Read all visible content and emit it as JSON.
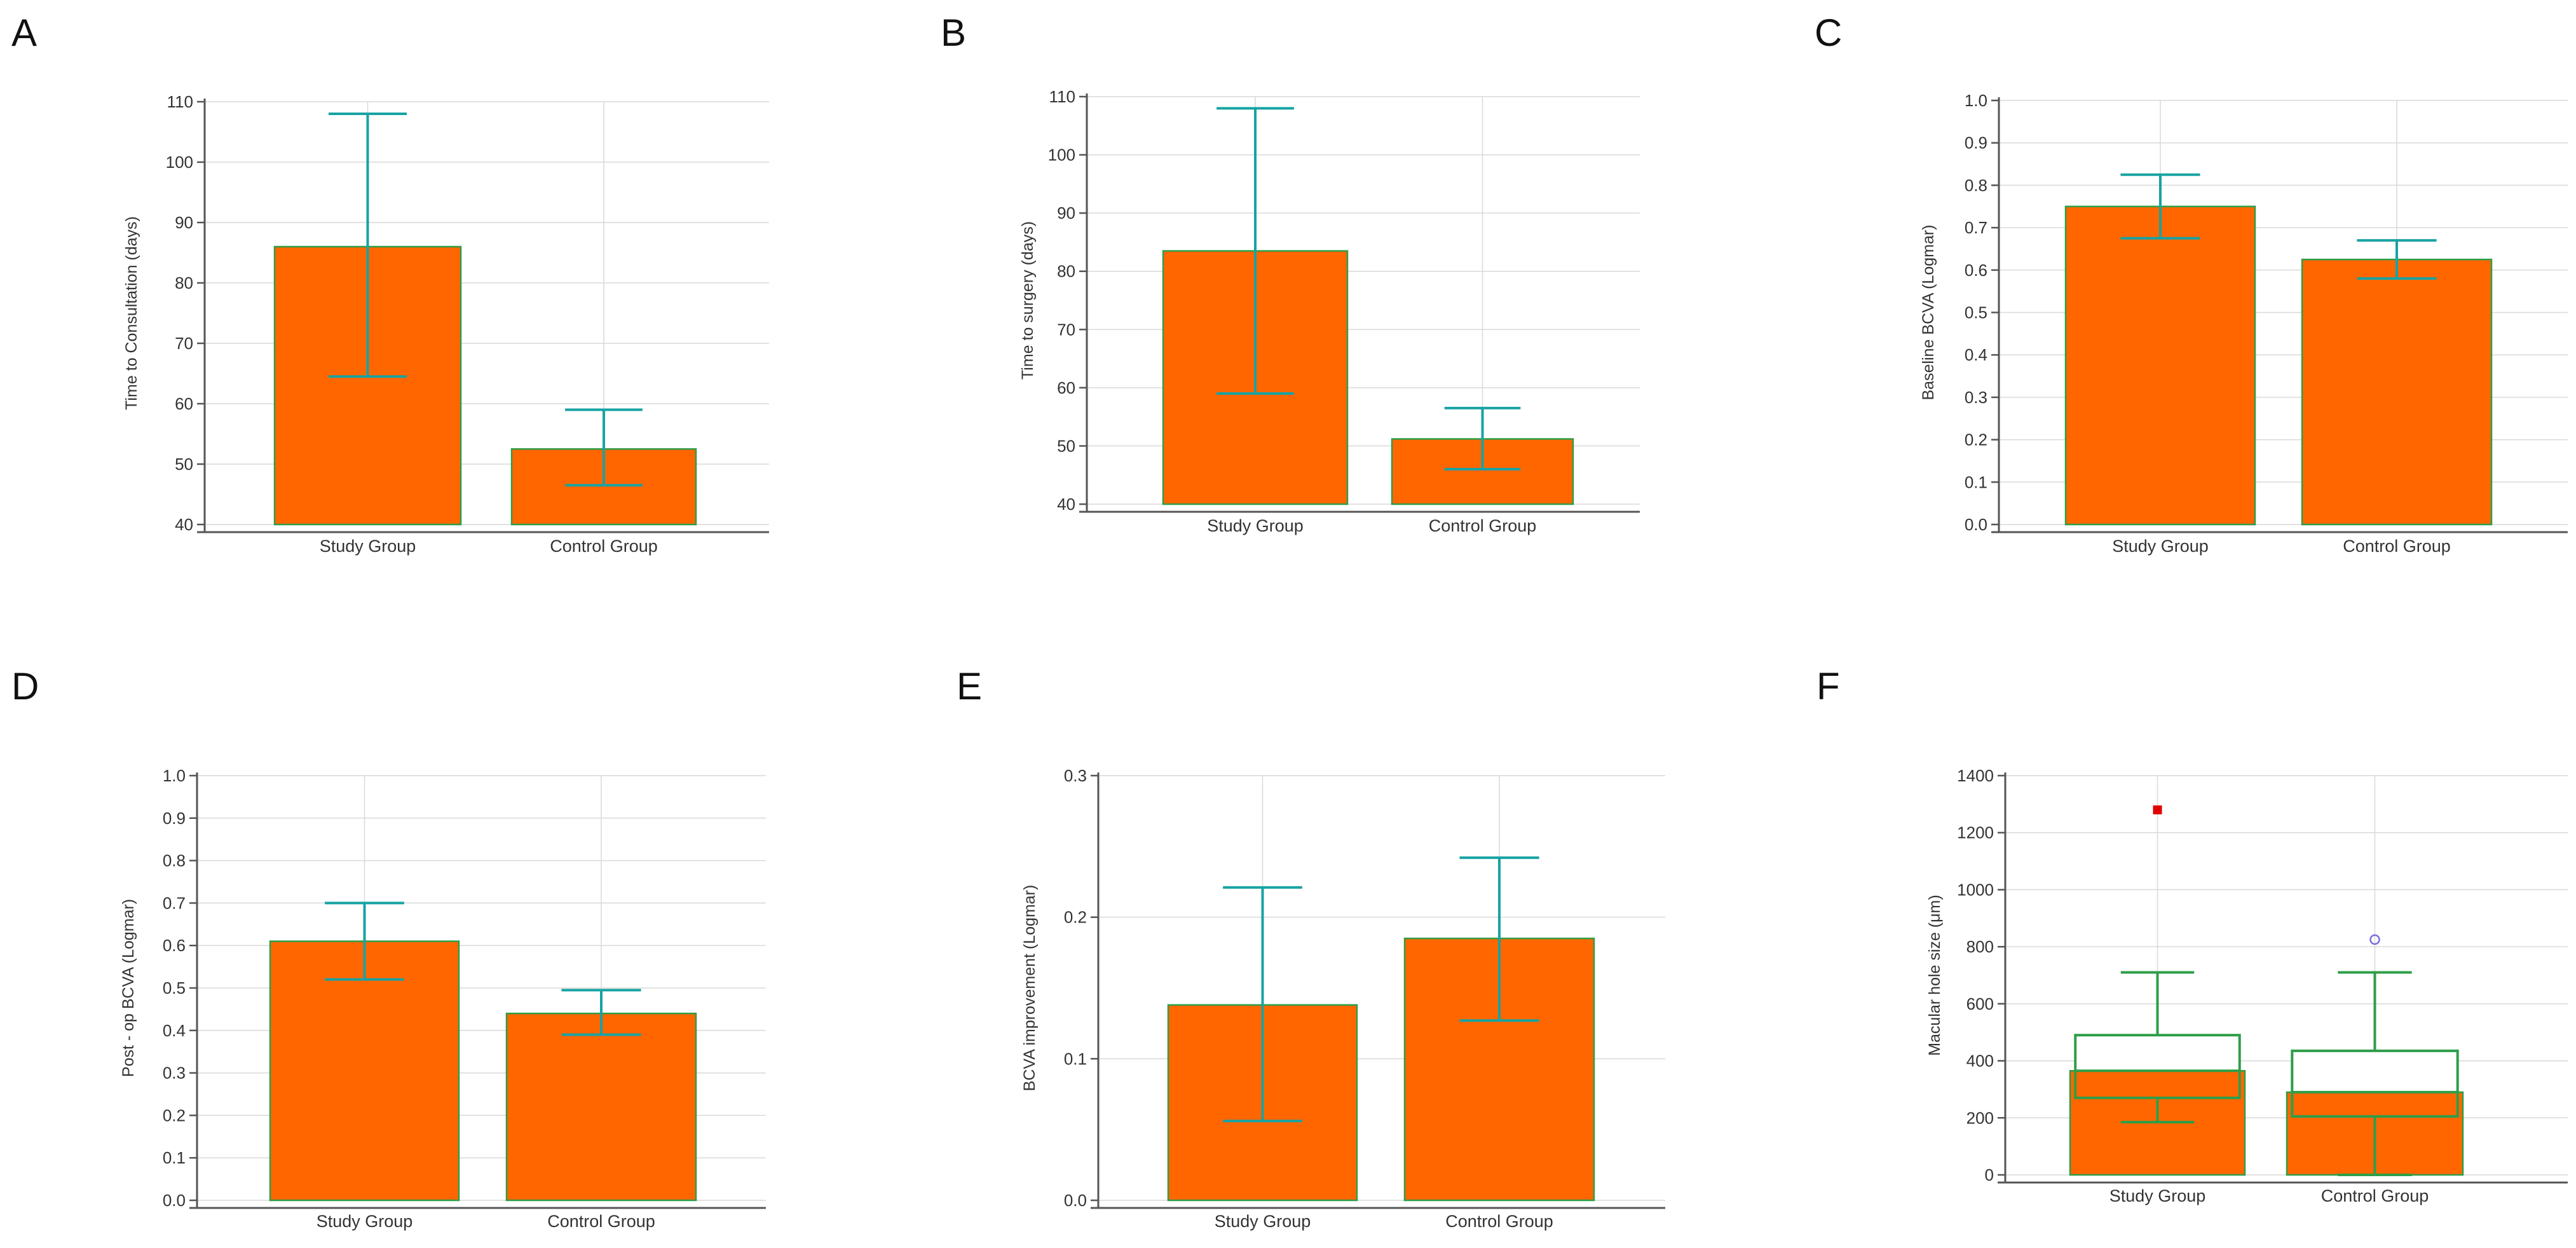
{
  "colors": {
    "bar_fill": "#ff6600",
    "bar_edge": "#2e9e48",
    "error_bar": "#18a3a3",
    "grid": "#d9d9d9",
    "axis": "#555555",
    "outlier_far": "#e00000",
    "outlier_out": "#7a6ee0"
  },
  "chart_data": [
    {
      "panel": "A",
      "type": "bar",
      "title": "",
      "xlabel": "",
      "ylabel": "Time to Consultation (days)",
      "categories": [
        "Study Group",
        "Control Group"
      ],
      "values": [
        86,
        52.5
      ],
      "error_low": [
        64.5,
        46.5
      ],
      "error_high": [
        108,
        59
      ],
      "ylim": [
        40,
        110
      ],
      "ybase": 40,
      "yticks": [
        "40",
        "50",
        "60",
        "70",
        "80",
        "90",
        "100",
        "110"
      ],
      "grid": true
    },
    {
      "panel": "B",
      "type": "bar",
      "title": "",
      "xlabel": "",
      "ylabel": "Time to surgery (days)",
      "categories": [
        "Study Group",
        "Control Group"
      ],
      "values": [
        83.5,
        51.2
      ],
      "error_low": [
        59,
        46
      ],
      "error_high": [
        108,
        56.5
      ],
      "ylim": [
        40,
        110
      ],
      "ybase": 40,
      "yticks": [
        "40",
        "50",
        "60",
        "70",
        "80",
        "90",
        "100",
        "110"
      ],
      "grid": true
    },
    {
      "panel": "C",
      "type": "bar",
      "title": "",
      "xlabel": "",
      "ylabel": "Baseline BCVA (Logmar)",
      "categories": [
        "Study Group",
        "Control Group"
      ],
      "values": [
        0.75,
        0.625
      ],
      "error_low": [
        0.675,
        0.58
      ],
      "error_high": [
        0.825,
        0.67
      ],
      "ylim": [
        0,
        1
      ],
      "ybase": 0,
      "yticks": [
        "0.0",
        "0.1",
        "0.2",
        "0.3",
        "0.4",
        "0.5",
        "0.6",
        "0.7",
        "0.8",
        "0.9",
        "1.0"
      ],
      "grid": true
    },
    {
      "panel": "D",
      "type": "bar",
      "title": "",
      "xlabel": "",
      "ylabel": "Post - op BCVA (Logmar)",
      "categories": [
        "Study Group",
        "Control Group"
      ],
      "values": [
        0.61,
        0.44
      ],
      "error_low": [
        0.52,
        0.39
      ],
      "error_high": [
        0.7,
        0.495
      ],
      "ylim": [
        0,
        1
      ],
      "ybase": 0,
      "yticks": [
        "0.0",
        "0.1",
        "0.2",
        "0.3",
        "0.4",
        "0.5",
        "0.6",
        "0.7",
        "0.8",
        "0.9",
        "1.0"
      ],
      "grid": true
    },
    {
      "panel": "E",
      "type": "bar",
      "title": "",
      "xlabel": "",
      "ylabel": "BCVA improvement (Logmar)",
      "categories": [
        "Study Group",
        "Control Group"
      ],
      "values": [
        0.138,
        0.185
      ],
      "error_low": [
        0.056,
        0.127
      ],
      "error_high": [
        0.221,
        0.242
      ],
      "ylim": [
        0,
        0.3
      ],
      "ybase": 0,
      "yticks": [
        "0.0",
        "0.1",
        "0.2",
        "0.3"
      ],
      "grid": true
    },
    {
      "panel": "F",
      "type": "box",
      "title": "",
      "xlabel": "",
      "ylabel": "Macular hole size (μm)",
      "categories": [
        "Study Group",
        "Control Group"
      ],
      "values": [
        365,
        290
      ],
      "box": [
        {
          "q1": 270,
          "median": 365,
          "q3": 490,
          "whisker_low": 185,
          "whisker_high": 710,
          "outliers": [
            {
              "value": 1280,
              "kind": "far"
            }
          ]
        },
        {
          "q1": 205,
          "median": 290,
          "q3": 435,
          "whisker_low": 0,
          "whisker_high": 710,
          "outliers": [
            {
              "value": 825,
              "kind": "out"
            }
          ]
        }
      ],
      "ylim": [
        0,
        1400
      ],
      "ybase": 0,
      "yticks": [
        "0",
        "200",
        "400",
        "600",
        "800",
        "1000",
        "1200",
        "1400"
      ],
      "grid": true
    }
  ]
}
